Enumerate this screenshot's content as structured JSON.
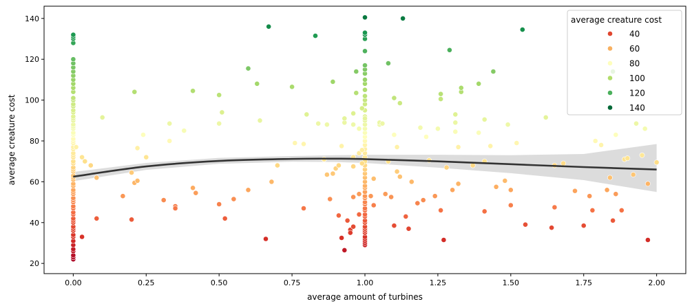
{
  "chart_data": {
    "type": "scatter",
    "title": "",
    "xlabel": "average amount of turbines",
    "ylabel": "average creature cost",
    "xlim": [
      -0.1,
      2.1
    ],
    "ylim": [
      15,
      146
    ],
    "xticks": [
      "0.00",
      "0.25",
      "0.50",
      "0.75",
      "1.00",
      "1.25",
      "1.50",
      "1.75",
      "2.00"
    ],
    "yticks": [
      "20",
      "40",
      "60",
      "80",
      "100",
      "120",
      "140"
    ],
    "grid": false,
    "legend": {
      "title": "average creature cost",
      "placement": "top-right",
      "entries": [
        {
          "label": "40",
          "color": "#e0462f"
        },
        {
          "label": "60",
          "color": "#f8b060"
        },
        {
          "label": "80",
          "color": "#fefebd"
        },
        {
          "label": "100",
          "color": "#b2dd6b"
        },
        {
          "label": "120",
          "color": "#4bb05c"
        },
        {
          "label": "140",
          "color": "#006837"
        }
      ]
    },
    "hue_range": [
      20,
      145
    ],
    "trend": {
      "x": [
        0.0,
        0.25,
        0.5,
        0.75,
        0.9,
        1.0,
        1.25,
        1.5,
        1.75,
        2.0
      ],
      "y": [
        62.5,
        67.5,
        70.2,
        71.2,
        71.3,
        71.1,
        70.0,
        68.6,
        67.2,
        66.0
      ],
      "ci_upper": [
        64.8,
        69.2,
        71.7,
        72.6,
        73.0,
        73.2,
        73.2,
        73.0,
        73.6,
        78.5
      ],
      "ci_lower": [
        60.3,
        65.8,
        68.8,
        69.8,
        69.7,
        69.2,
        66.9,
        64.2,
        60.8,
        55.0
      ]
    },
    "points": [
      [
        0,
        22
      ],
      [
        0,
        23
      ],
      [
        0,
        24
      ],
      [
        0,
        26
      ],
      [
        0,
        27
      ],
      [
        0,
        29
      ],
      [
        0,
        31
      ],
      [
        0,
        33
      ],
      [
        0,
        34
      ],
      [
        0,
        36
      ],
      [
        0,
        37
      ],
      [
        0,
        38
      ],
      [
        0,
        40
      ],
      [
        0,
        41
      ],
      [
        0,
        42
      ],
      [
        0,
        44
      ],
      [
        0,
        45
      ],
      [
        0,
        47
      ],
      [
        0,
        48
      ],
      [
        0,
        50
      ],
      [
        0,
        51
      ],
      [
        0,
        52
      ],
      [
        0,
        54
      ],
      [
        0,
        55
      ],
      [
        0,
        56
      ],
      [
        0,
        58
      ],
      [
        0,
        59
      ],
      [
        0,
        61
      ],
      [
        0,
        62
      ],
      [
        0,
        63
      ],
      [
        0,
        65
      ],
      [
        0,
        66
      ],
      [
        0,
        67
      ],
      [
        0,
        69
      ],
      [
        0,
        70
      ],
      [
        0,
        72
      ],
      [
        0,
        73
      ],
      [
        0,
        74
      ],
      [
        0,
        76
      ],
      [
        0,
        77
      ],
      [
        0,
        79
      ],
      [
        0,
        80
      ],
      [
        0,
        81
      ],
      [
        0,
        83
      ],
      [
        0,
        84
      ],
      [
        0,
        86
      ],
      [
        0,
        87
      ],
      [
        0,
        88
      ],
      [
        0,
        90
      ],
      [
        0,
        91
      ],
      [
        0,
        92
      ],
      [
        0,
        94
      ],
      [
        0,
        95
      ],
      [
        0,
        97
      ],
      [
        0,
        98
      ],
      [
        0,
        100
      ],
      [
        0,
        101
      ],
      [
        0,
        104
      ],
      [
        0,
        106
      ],
      [
        0,
        108
      ],
      [
        0,
        110
      ],
      [
        0,
        112
      ],
      [
        0,
        114
      ],
      [
        0,
        116
      ],
      [
        0,
        118
      ],
      [
        0,
        120
      ],
      [
        0,
        128
      ],
      [
        0,
        130
      ],
      [
        0,
        131
      ],
      [
        0,
        132
      ],
      [
        1,
        29
      ],
      [
        1,
        30
      ],
      [
        1,
        31
      ],
      [
        1,
        32
      ],
      [
        1,
        33
      ],
      [
        1,
        35
      ],
      [
        1,
        36
      ],
      [
        1,
        37
      ],
      [
        1,
        38
      ],
      [
        1,
        40
      ],
      [
        1,
        41
      ],
      [
        1,
        43
      ],
      [
        1,
        44
      ],
      [
        1,
        46
      ],
      [
        1,
        47
      ],
      [
        1,
        49
      ],
      [
        1,
        50
      ],
      [
        1,
        52
      ],
      [
        1,
        53
      ],
      [
        1,
        55
      ],
      [
        1,
        57
      ],
      [
        1,
        58
      ],
      [
        1,
        60
      ],
      [
        1,
        62
      ],
      [
        1,
        64
      ],
      [
        1,
        66
      ],
      [
        1,
        68
      ],
      [
        1,
        70
      ],
      [
        1,
        72
      ],
      [
        1,
        74
      ],
      [
        1,
        76
      ],
      [
        1,
        78
      ],
      [
        1,
        80
      ],
      [
        1,
        82
      ],
      [
        1,
        84
      ],
      [
        1,
        86
      ],
      [
        1,
        88
      ],
      [
        1,
        90
      ],
      [
        1,
        92
      ],
      [
        1,
        95
      ],
      [
        1,
        98
      ],
      [
        1,
        100
      ],
      [
        1,
        102
      ],
      [
        1,
        105
      ],
      [
        1,
        108
      ],
      [
        1,
        110
      ],
      [
        1,
        113
      ],
      [
        1,
        115
      ],
      [
        1,
        117
      ],
      [
        1,
        124
      ],
      [
        1,
        130
      ],
      [
        1,
        132
      ],
      [
        1,
        133
      ],
      [
        1,
        140.5
      ],
      [
        0.01,
        77
      ],
      [
        0.03,
        33
      ],
      [
        0.03,
        72
      ],
      [
        0.04,
        70
      ],
      [
        0.06,
        68
      ],
      [
        0.08,
        42
      ],
      [
        0.08,
        62
      ],
      [
        0.1,
        91.5
      ],
      [
        0.17,
        53
      ],
      [
        0.2,
        41.5
      ],
      [
        0.2,
        64.5
      ],
      [
        0.21,
        59.5
      ],
      [
        0.21,
        104
      ],
      [
        0.22,
        60.5
      ],
      [
        0.22,
        76.5
      ],
      [
        0.24,
        83
      ],
      [
        0.25,
        72
      ],
      [
        0.31,
        51
      ],
      [
        0.33,
        80
      ],
      [
        0.33,
        88.5
      ],
      [
        0.35,
        48
      ],
      [
        0.35,
        47
      ],
      [
        0.38,
        85
      ],
      [
        0.41,
        104.5
      ],
      [
        0.41,
        57
      ],
      [
        0.42,
        54.5
      ],
      [
        0.5,
        49
      ],
      [
        0.5,
        88.5
      ],
      [
        0.5,
        102.5
      ],
      [
        0.51,
        94
      ],
      [
        0.52,
        42
      ],
      [
        0.55,
        51.5
      ],
      [
        0.6,
        56
      ],
      [
        0.6,
        115.5
      ],
      [
        0.63,
        108
      ],
      [
        0.64,
        90
      ],
      [
        0.66,
        32
      ],
      [
        0.67,
        136
      ],
      [
        0.68,
        60
      ],
      [
        0.7,
        68
      ],
      [
        0.75,
        106.5
      ],
      [
        0.76,
        79
      ],
      [
        0.79,
        78.5
      ],
      [
        0.79,
        47
      ],
      [
        0.8,
        93
      ],
      [
        0.83,
        131.5
      ],
      [
        0.84,
        88.5
      ],
      [
        0.86,
        71
      ],
      [
        0.87,
        63.5
      ],
      [
        0.87,
        88
      ],
      [
        0.88,
        51.5
      ],
      [
        0.89,
        64
      ],
      [
        0.89,
        109
      ],
      [
        0.9,
        66.5
      ],
      [
        0.91,
        68
      ],
      [
        0.91,
        43.5
      ],
      [
        0.92,
        77.5
      ],
      [
        0.92,
        32.5
      ],
      [
        0.93,
        26.5
      ],
      [
        0.93,
        89
      ],
      [
        0.93,
        91
      ],
      [
        0.94,
        41
      ],
      [
        0.95,
        36.5
      ],
      [
        0.95,
        35
      ],
      [
        0.96,
        38
      ],
      [
        0.96,
        52.5
      ],
      [
        0.96,
        67.5
      ],
      [
        0.96,
        72
      ],
      [
        0.96,
        88
      ],
      [
        0.96,
        93.5
      ],
      [
        0.97,
        114
      ],
      [
        0.97,
        103.5
      ],
      [
        0.98,
        54
      ],
      [
        0.98,
        74
      ],
      [
        0.98,
        44
      ],
      [
        0.98,
        86
      ],
      [
        0.99,
        69
      ],
      [
        0.99,
        96
      ],
      [
        0.99,
        75.5
      ],
      [
        1.0,
        91
      ],
      [
        1.02,
        53
      ],
      [
        1.03,
        61.5
      ],
      [
        1.03,
        48.5
      ],
      [
        1.05,
        88
      ],
      [
        1.05,
        89
      ],
      [
        1.06,
        88.5
      ],
      [
        1.07,
        54
      ],
      [
        1.08,
        70
      ],
      [
        1.08,
        118
      ],
      [
        1.09,
        52.5
      ],
      [
        1.1,
        38.5
      ],
      [
        1.1,
        83
      ],
      [
        1.1,
        101
      ],
      [
        1.11,
        65
      ],
      [
        1.11,
        77
      ],
      [
        1.12,
        98.5
      ],
      [
        1.12,
        62.5
      ],
      [
        1.13,
        140
      ],
      [
        1.14,
        43
      ],
      [
        1.15,
        37
      ],
      [
        1.16,
        60
      ],
      [
        1.18,
        49.5
      ],
      [
        1.19,
        86.5
      ],
      [
        1.2,
        51
      ],
      [
        1.21,
        82
      ],
      [
        1.22,
        70.5
      ],
      [
        1.24,
        53
      ],
      [
        1.25,
        86
      ],
      [
        1.26,
        100.5
      ],
      [
        1.26,
        103
      ],
      [
        1.26,
        46
      ],
      [
        1.27,
        31.5
      ],
      [
        1.28,
        67
      ],
      [
        1.29,
        124.5
      ],
      [
        1.3,
        56
      ],
      [
        1.31,
        84.5
      ],
      [
        1.31,
        89
      ],
      [
        1.31,
        93
      ],
      [
        1.32,
        59
      ],
      [
        1.32,
        77
      ],
      [
        1.33,
        104
      ],
      [
        1.33,
        106
      ],
      [
        1.37,
        68
      ],
      [
        1.39,
        84
      ],
      [
        1.39,
        108
      ],
      [
        1.41,
        45.5
      ],
      [
        1.41,
        70
      ],
      [
        1.41,
        90.5
      ],
      [
        1.43,
        77.5
      ],
      [
        1.44,
        114
      ],
      [
        1.45,
        57.5
      ],
      [
        1.48,
        60.5
      ],
      [
        1.49,
        88
      ],
      [
        1.5,
        56
      ],
      [
        1.5,
        48.5
      ],
      [
        1.52,
        79
      ],
      [
        1.54,
        134.5
      ],
      [
        1.55,
        39
      ],
      [
        1.62,
        91.5
      ],
      [
        1.64,
        37.5
      ],
      [
        1.65,
        47.5
      ],
      [
        1.65,
        68
      ],
      [
        1.68,
        69
      ],
      [
        1.72,
        55.5
      ],
      [
        1.75,
        38.5
      ],
      [
        1.77,
        53
      ],
      [
        1.78,
        46
      ],
      [
        1.79,
        80
      ],
      [
        1.81,
        78
      ],
      [
        1.83,
        56
      ],
      [
        1.84,
        62
      ],
      [
        1.85,
        41
      ],
      [
        1.85,
        114
      ],
      [
        1.86,
        83
      ],
      [
        1.86,
        54
      ],
      [
        1.88,
        46
      ],
      [
        1.89,
        71
      ],
      [
        1.9,
        71.5
      ],
      [
        1.92,
        63.5
      ],
      [
        1.93,
        88.5
      ],
      [
        1.95,
        73
      ],
      [
        1.96,
        86
      ],
      [
        1.97,
        59
      ],
      [
        1.97,
        31.5
      ],
      [
        2.0,
        69.5
      ]
    ]
  }
}
